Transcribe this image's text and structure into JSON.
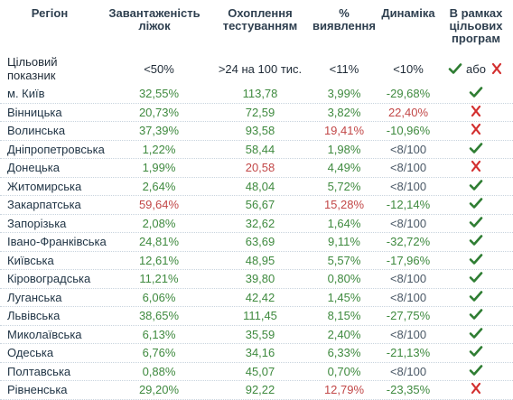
{
  "header": {
    "region": "Регіон",
    "bed_load": "Завантаженість ліжок",
    "testing": "Охоплення тестуванням",
    "detection": "% виявлення",
    "dynamics": "Динаміка",
    "programs": "В рамках цільових програм"
  },
  "target": {
    "label": "Цільовий показник",
    "bed_load": "<50%",
    "testing": ">24 на 100 тис.",
    "detection": "<11%",
    "dynamics": "<10%",
    "or_text": "або"
  },
  "colors": {
    "green": "#3f8a3f",
    "red": "#c24848",
    "check": "#2e7d32",
    "cross": "#d32f2f"
  },
  "rows": [
    {
      "region": "м. Київ",
      "bed_load": "32,55%",
      "testing": "113,78",
      "detection": "3,99%",
      "dynamics": "-29,68%",
      "program": "check",
      "c": [
        "g",
        "g",
        "g",
        "g"
      ]
    },
    {
      "region": "Вінницька",
      "bed_load": "20,73%",
      "testing": "72,59",
      "detection": "3,82%",
      "dynamics": "22,40%",
      "program": "cross",
      "c": [
        "g",
        "g",
        "g",
        "r"
      ]
    },
    {
      "region": "Волинська",
      "bed_load": "37,39%",
      "testing": "93,58",
      "detection": "19,41%",
      "dynamics": "-10,96%",
      "program": "cross",
      "c": [
        "g",
        "g",
        "r",
        "g"
      ]
    },
    {
      "region": "Дніпропетровська",
      "bed_load": "1,22%",
      "testing": "58,44",
      "detection": "1,98%",
      "dynamics": "<8/100",
      "program": "check",
      "c": [
        "g",
        "g",
        "g",
        "n"
      ]
    },
    {
      "region": "Донецька",
      "bed_load": "1,99%",
      "testing": "20,58",
      "detection": "4,49%",
      "dynamics": "<8/100",
      "program": "cross",
      "c": [
        "g",
        "r",
        "g",
        "n"
      ]
    },
    {
      "region": "Житомирська",
      "bed_load": "2,64%",
      "testing": "48,04",
      "detection": "5,72%",
      "dynamics": "<8/100",
      "program": "check",
      "c": [
        "g",
        "g",
        "g",
        "n"
      ]
    },
    {
      "region": "Закарпатська",
      "bed_load": "59,64%",
      "testing": "56,67",
      "detection": "15,28%",
      "dynamics": "-12,14%",
      "program": "check",
      "c": [
        "r",
        "g",
        "r",
        "g"
      ]
    },
    {
      "region": "Запорізька",
      "bed_load": "2,08%",
      "testing": "32,62",
      "detection": "1,64%",
      "dynamics": "<8/100",
      "program": "check",
      "c": [
        "g",
        "g",
        "g",
        "n"
      ]
    },
    {
      "region": "Івано-Франківська",
      "bed_load": "24,81%",
      "testing": "63,69",
      "detection": "9,11%",
      "dynamics": "-32,72%",
      "program": "check",
      "c": [
        "g",
        "g",
        "g",
        "g"
      ]
    },
    {
      "region": "Київська",
      "bed_load": "12,61%",
      "testing": "48,95",
      "detection": "5,57%",
      "dynamics": "-17,96%",
      "program": "check",
      "c": [
        "g",
        "g",
        "g",
        "g"
      ]
    },
    {
      "region": "Кіровоградська",
      "bed_load": "11,21%",
      "testing": "39,80",
      "detection": "0,80%",
      "dynamics": "<8/100",
      "program": "check",
      "c": [
        "g",
        "g",
        "g",
        "n"
      ]
    },
    {
      "region": "Луганська",
      "bed_load": "6,06%",
      "testing": "42,42",
      "detection": "1,45%",
      "dynamics": "<8/100",
      "program": "check",
      "c": [
        "g",
        "g",
        "g",
        "n"
      ]
    },
    {
      "region": "Львівська",
      "bed_load": "38,65%",
      "testing": "111,45",
      "detection": "8,15%",
      "dynamics": "-27,75%",
      "program": "check",
      "c": [
        "g",
        "g",
        "g",
        "g"
      ]
    },
    {
      "region": "Миколаївська",
      "bed_load": "6,13%",
      "testing": "35,59",
      "detection": "2,40%",
      "dynamics": "<8/100",
      "program": "check",
      "c": [
        "g",
        "g",
        "g",
        "n"
      ]
    },
    {
      "region": "Одеська",
      "bed_load": "6,76%",
      "testing": "34,16",
      "detection": "6,33%",
      "dynamics": "-21,13%",
      "program": "check",
      "c": [
        "g",
        "g",
        "g",
        "g"
      ]
    },
    {
      "region": "Полтавська",
      "bed_load": "0,88%",
      "testing": "45,07",
      "detection": "0,70%",
      "dynamics": "<8/100",
      "program": "check",
      "c": [
        "g",
        "g",
        "g",
        "n"
      ]
    },
    {
      "region": "Рівненська",
      "bed_load": "29,20%",
      "testing": "92,22",
      "detection": "12,79%",
      "dynamics": "-23,35%",
      "program": "cross",
      "c": [
        "g",
        "g",
        "r",
        "g"
      ]
    }
  ]
}
